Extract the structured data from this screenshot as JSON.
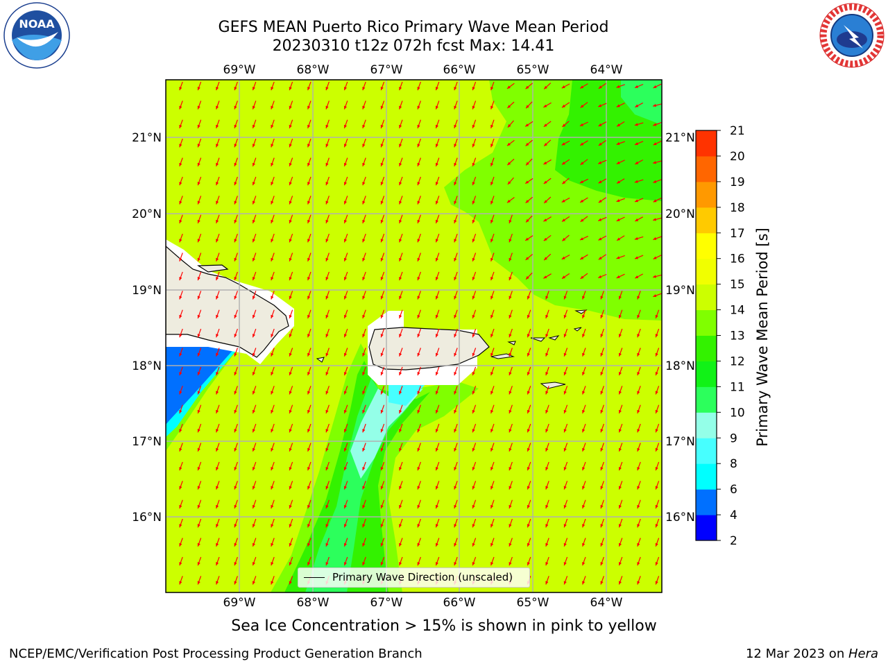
{
  "title": {
    "line1": "GEFS MEAN Puerto Rico Primary Wave Mean Period",
    "line2": "20230310 t12z 072h fcst   Max: 14.41"
  },
  "map": {
    "lon_labels": [
      "69°W",
      "68°W",
      "67°W",
      "66°W",
      "65°W",
      "64°W"
    ],
    "lat_labels": [
      "21°N",
      "20°N",
      "19°N",
      "18°N",
      "17°N",
      "16°N"
    ],
    "legend_label": "Primary Wave Direction (unscaled)",
    "arrow_color": "#ff0000",
    "land_color": "#eeecdf"
  },
  "colorbar": {
    "label": "Primary Wave Mean Period [s]",
    "tick_labels": [
      "2",
      "4",
      "6",
      "8",
      "9",
      "10",
      "11",
      "12",
      "13",
      "14",
      "15",
      "16",
      "17",
      "18",
      "19",
      "20",
      "21"
    ],
    "colors": [
      "#0000ff",
      "#0070ff",
      "#00ffff",
      "#47ffff",
      "#94ffe8",
      "#2cff5c",
      "#11f217",
      "#33f200",
      "#80ff00",
      "#ccff00",
      "#f1ff00",
      "#ffff00",
      "#ffca00",
      "#ff9900",
      "#ff6600",
      "#ff3300",
      "#ff0000"
    ]
  },
  "subtitle": "Sea Ice Concentration > 15% is shown in pink to yellow",
  "footer": {
    "left": "NCEP/EMC/Verification Post Processing Product Generation Branch",
    "right_prefix": "12 Mar 2023 on ",
    "right_host": "Hera"
  },
  "logos": {
    "noaa_text": "NOAA",
    "nws_text": "NATIONAL WEATHER SERVICE"
  }
}
